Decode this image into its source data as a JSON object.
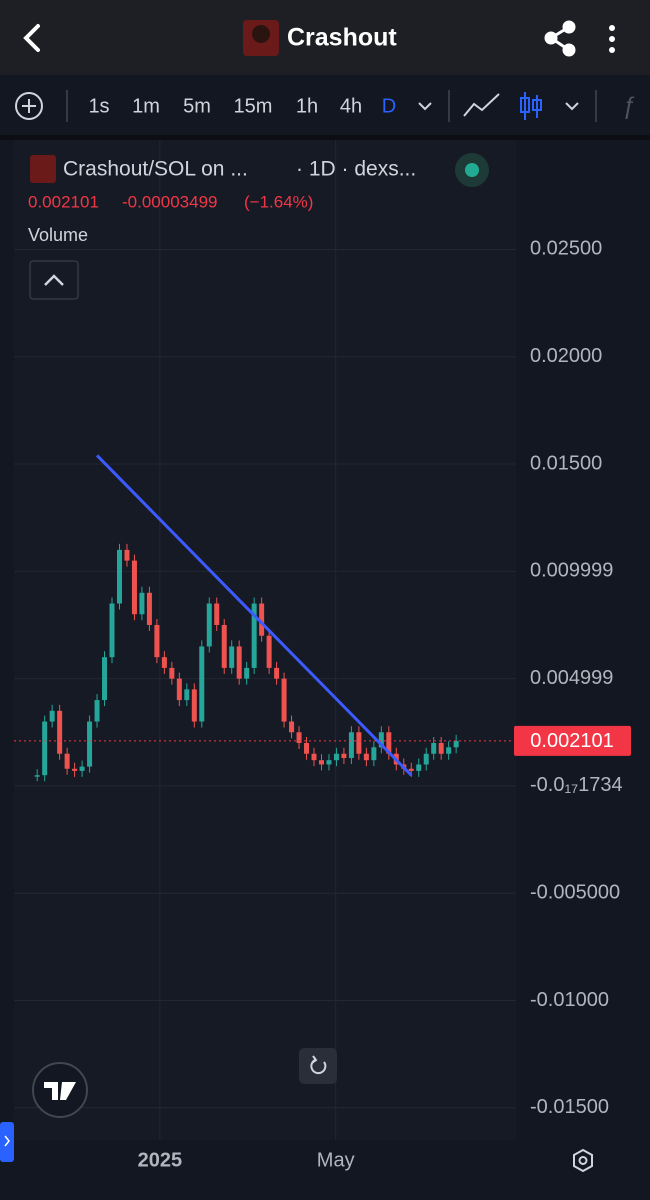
{
  "header": {
    "title": "Crashout"
  },
  "toolbar": {
    "intervals": [
      "1s",
      "1m",
      "5m",
      "15m",
      "1h",
      "4h",
      "D"
    ]
  },
  "legend": {
    "symbol": "Crashout/SOL on ...",
    "details": "· 1D · dexs...",
    "change": "-0.00003499",
    "change_pct": "(−1.64%)",
    "study": "Volume"
  },
  "chart_data": {
    "type": "candlestick",
    "values": [
      0.0005,
      0.003,
      0.0035,
      0.0015,
      0.0008,
      0.0007,
      0.0009,
      0.003,
      0.004,
      0.006,
      0.0085,
      0.011,
      0.0105,
      0.008,
      0.009,
      0.0075,
      0.006,
      0.0055,
      0.005,
      0.004,
      0.0045,
      0.003,
      0.0065,
      0.0085,
      0.0075,
      0.0055,
      0.0065,
      0.005,
      0.0055,
      0.0085,
      0.007,
      0.0055,
      0.005,
      0.003,
      0.0025,
      0.002,
      0.0015,
      0.0012,
      0.001,
      0.0012,
      0.0015,
      0.0013,
      0.0025,
      0.0015,
      0.0012,
      0.0018,
      0.0025,
      0.0015,
      0.001,
      0.0008,
      0.0007,
      0.001,
      0.0015,
      0.002,
      0.0015,
      0.0018,
      0.0021
    ],
    "up_color": "#26a69a",
    "down_color": "#ef5350",
    "xlim": [
      -3.1,
      64
    ],
    "xticks": [
      {
        "value": 16.4,
        "label": "2025"
      },
      {
        "value": 39.9,
        "label": "May"
      }
    ],
    "ylim": [
      -0.0165,
      0.0301
    ],
    "yticks": [
      {
        "value": 0.025,
        "label": "0.02500"
      },
      {
        "value": 0.02,
        "label": "0.02000"
      },
      {
        "value": 0.015,
        "label": "0.01500"
      },
      0.009999,
      0.004999,
      {
        "value": -1.734e-21,
        "label": "-0.0₁₇1734"
      },
      {
        "value": -0.005,
        "label": "-0.005000"
      },
      {
        "value": -0.01,
        "label": "-0.01000"
      },
      {
        "value": -0.015,
        "label": "-0.01500"
      }
    ],
    "last_price": 0.002101,
    "trendline": {
      "x": [
        8,
        50
      ],
      "values": [
        0.0154,
        0.0005
      ],
      "color": "#3d5afe"
    },
    "grid": true
  }
}
